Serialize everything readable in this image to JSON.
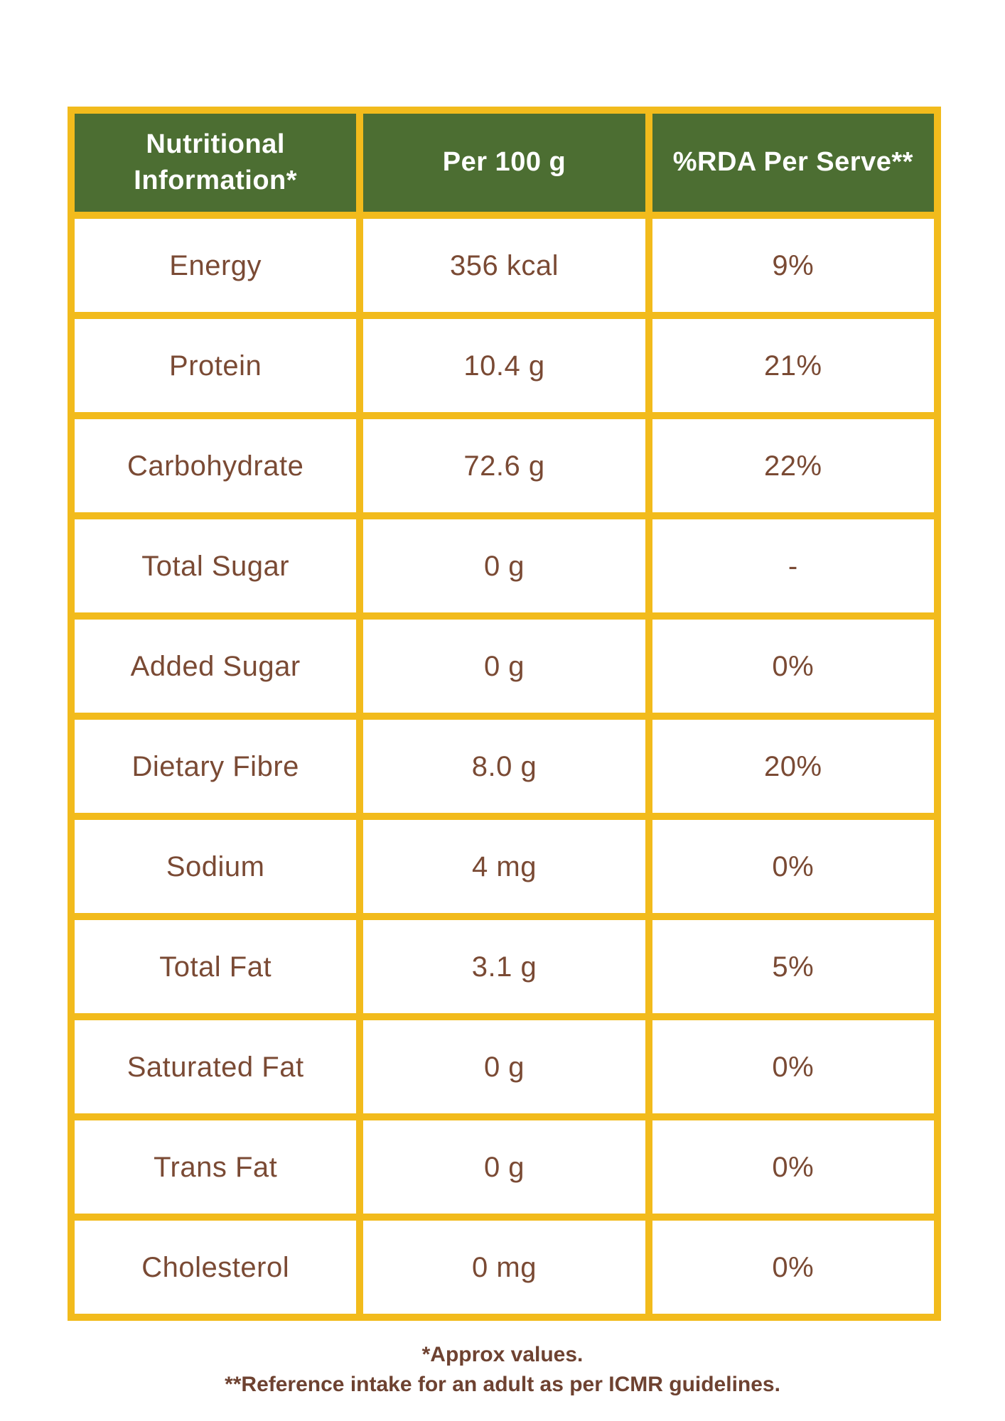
{
  "table": {
    "columns": [
      {
        "label": "Nutritional Information*"
      },
      {
        "label": "Per 100 g"
      },
      {
        "label": "%RDA Per Serve**"
      }
    ],
    "rows": [
      {
        "label": "Energy",
        "per_100g": "356 kcal",
        "rda_per_serve": "9%"
      },
      {
        "label": "Protein",
        "per_100g": "10.4 g",
        "rda_per_serve": "21%"
      },
      {
        "label": "Carbohydrate",
        "per_100g": "72.6 g",
        "rda_per_serve": "22%"
      },
      {
        "label": "Total Sugar",
        "per_100g": "0 g",
        "rda_per_serve": "-"
      },
      {
        "label": "Added Sugar",
        "per_100g": "0 g",
        "rda_per_serve": "0%"
      },
      {
        "label": "Dietary Fibre",
        "per_100g": "8.0 g",
        "rda_per_serve": "20%"
      },
      {
        "label": "Sodium",
        "per_100g": "4 mg",
        "rda_per_serve": "0%"
      },
      {
        "label": "Total Fat",
        "per_100g": "3.1 g",
        "rda_per_serve": "5%"
      },
      {
        "label": "Saturated Fat",
        "per_100g": "0 g",
        "rda_per_serve": "0%"
      },
      {
        "label": "Trans Fat",
        "per_100g": "0 g",
        "rda_per_serve": "0%"
      },
      {
        "label": "Cholesterol",
        "per_100g": "0 mg",
        "rda_per_serve": "0%"
      }
    ]
  },
  "footnotes": {
    "approx": "*Approx values.",
    "reference": "**Reference intake for an adult as per ICMR guidelines."
  },
  "colors": {
    "header_green": "#4C6E32",
    "border_yellow": "#F2BB1C",
    "cell_text_brown": "#7A4A34",
    "footnote_brown": "#6E4231",
    "header_text_white": "#FFFFFF",
    "background": "#FFFFFF"
  }
}
